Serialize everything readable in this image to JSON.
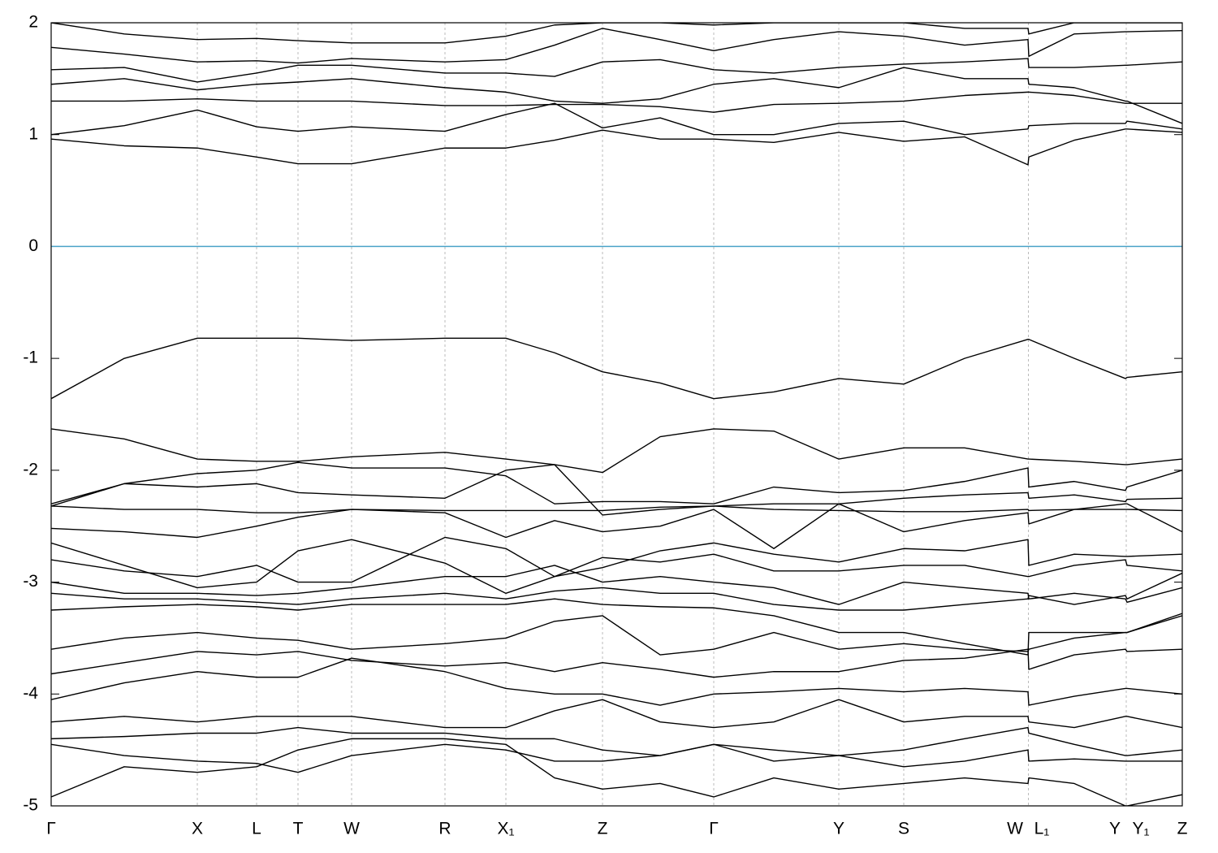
{
  "chart_data": {
    "type": "line",
    "x": [
      0,
      0.9,
      1.8,
      2.53,
      3.04,
      3.7,
      4.85,
      5.6,
      6.2,
      6.79,
      7.5,
      8.16,
      8.9,
      9.7,
      10.5,
      11.25,
      12.03,
      12.04,
      12.6,
      13.23,
      13.25,
      13.93
    ],
    "xlim": [
      0,
      13.93
    ],
    "xticks": [
      {
        "value": 0,
        "label": "Γ"
      },
      {
        "value": 1.8,
        "label": "X"
      },
      {
        "value": 2.53,
        "label": "L"
      },
      {
        "value": 3.04,
        "label": "T"
      },
      {
        "value": 3.7,
        "label": "W"
      },
      {
        "value": 4.85,
        "label": "R"
      },
      {
        "value": 5.6,
        "label": "X₁"
      },
      {
        "value": 6.79,
        "label": "Z"
      },
      {
        "value": 8.16,
        "label": "Γ"
      },
      {
        "value": 9.7,
        "label": "Y"
      },
      {
        "value": 10.5,
        "label": "S"
      },
      {
        "value": 11.87,
        "label": "W"
      },
      {
        "value": 12.2,
        "label": "L₁"
      },
      {
        "value": 13.1,
        "label": "Y"
      },
      {
        "value": 13.42,
        "label": "Y₁"
      },
      {
        "value": 13.93,
        "label": "Z"
      }
    ],
    "kpoints": [
      0,
      1.8,
      2.53,
      3.04,
      3.7,
      4.85,
      5.6,
      6.79,
      8.16,
      9.7,
      10.5,
      12.035,
      13.24,
      13.93
    ],
    "ylim": [
      -5,
      2
    ],
    "yticks": [
      -5,
      -4,
      -3,
      -2,
      -1,
      0,
      1,
      2
    ],
    "color": "#000000",
    "hline": {
      "y": 0,
      "color": "#4aa3c8"
    },
    "grid": true,
    "series": [
      {
        "values": [
          0.96,
          0.9,
          0.88,
          0.8,
          0.74,
          0.74,
          0.88,
          0.88,
          0.95,
          1.04,
          0.96,
          0.96,
          0.93,
          1.02,
          0.94,
          0.98,
          0.73,
          0.8,
          0.95,
          1.05,
          1.05,
          1.02
        ]
      },
      {
        "values": [
          1.0,
          1.08,
          1.22,
          1.07,
          1.03,
          1.07,
          1.03,
          1.18,
          1.28,
          1.06,
          1.15,
          1.0,
          1.0,
          1.1,
          1.12,
          1.0,
          1.05,
          1.08,
          1.1,
          1.1,
          1.12,
          1.05
        ]
      },
      {
        "values": [
          1.3,
          1.3,
          1.32,
          1.3,
          1.3,
          1.3,
          1.26,
          1.26,
          1.27,
          1.27,
          1.25,
          1.2,
          1.27,
          1.28,
          1.3,
          1.35,
          1.38,
          1.38,
          1.35,
          1.28,
          1.28,
          1.28
        ]
      },
      {
        "values": [
          1.45,
          1.5,
          1.4,
          1.45,
          1.47,
          1.5,
          1.42,
          1.38,
          1.3,
          1.28,
          1.32,
          1.45,
          1.5,
          1.42,
          1.6,
          1.5,
          1.5,
          1.45,
          1.42,
          1.3,
          1.3,
          1.1
        ]
      },
      {
        "values": [
          1.58,
          1.6,
          1.47,
          1.55,
          1.62,
          1.62,
          1.55,
          1.55,
          1.52,
          1.65,
          1.67,
          1.58,
          1.55,
          1.6,
          1.63,
          1.65,
          1.68,
          1.6,
          1.6,
          1.62,
          1.62,
          1.65
        ]
      },
      {
        "values": [
          1.78,
          1.72,
          1.65,
          1.66,
          1.64,
          1.68,
          1.65,
          1.67,
          1.8,
          1.95,
          1.85,
          1.75,
          1.85,
          1.92,
          1.88,
          1.8,
          1.85,
          1.7,
          1.9,
          1.92,
          1.92,
          1.93
        ]
      },
      {
        "values": [
          2.0,
          1.9,
          1.85,
          1.86,
          1.84,
          1.82,
          1.82,
          1.88,
          1.98,
          2.0,
          2.0,
          1.98,
          2.0,
          2.0,
          2.0,
          1.95,
          1.95,
          1.9,
          2.0,
          2.0,
          2.0,
          2.0
        ]
      },
      {
        "values": [
          -1.36,
          -1.0,
          -0.82,
          -0.82,
          -0.82,
          -0.84,
          -0.82,
          -0.82,
          -0.95,
          -1.12,
          -1.22,
          -1.36,
          -1.3,
          -1.18,
          -1.23,
          -1.0,
          -0.83,
          -0.83,
          -1.0,
          -1.18,
          -1.17,
          -1.12
        ]
      },
      {
        "values": [
          -1.63,
          -1.72,
          -1.9,
          -1.92,
          -1.92,
          -1.88,
          -1.84,
          -1.9,
          -1.95,
          -2.02,
          -1.7,
          -1.63,
          -1.65,
          -1.9,
          -1.8,
          -1.8,
          -1.9,
          -1.9,
          -1.92,
          -1.95,
          -1.95,
          -1.9
        ]
      },
      {
        "values": [
          -2.3,
          -2.12,
          -2.03,
          -2.0,
          -1.93,
          -1.98,
          -1.98,
          -2.05,
          -2.3,
          -2.28,
          -2.28,
          -2.3,
          -2.15,
          -2.2,
          -2.18,
          -2.1,
          -1.98,
          -2.15,
          -2.1,
          -2.18,
          -2.15,
          -2.0
        ]
      },
      {
        "values": [
          -2.32,
          -2.12,
          -2.15,
          -2.12,
          -2.2,
          -2.22,
          -2.25,
          -2.0,
          -1.95,
          -2.4,
          -2.35,
          -2.32,
          -2.3,
          -2.3,
          -2.25,
          -2.22,
          -2.2,
          -2.25,
          -2.22,
          -2.28,
          -2.26,
          -2.25
        ]
      },
      {
        "values": [
          -2.32,
          -2.35,
          -2.35,
          -2.38,
          -2.38,
          -2.35,
          -2.36,
          -2.36,
          -2.36,
          -2.36,
          -2.33,
          -2.32,
          -2.35,
          -2.36,
          -2.37,
          -2.37,
          -2.35,
          -2.36,
          -2.35,
          -2.35,
          -2.35,
          -2.36
        ]
      },
      {
        "values": [
          -2.52,
          -2.55,
          -2.6,
          -2.5,
          -2.42,
          -2.35,
          -2.38,
          -2.6,
          -2.45,
          -2.55,
          -2.5,
          -2.35,
          -2.7,
          -2.3,
          -2.55,
          -2.45,
          -2.38,
          -2.48,
          -2.35,
          -2.3,
          -2.3,
          -2.55
        ]
      },
      {
        "values": [
          -2.65,
          -2.85,
          -3.05,
          -3.0,
          -2.72,
          -2.62,
          -2.83,
          -3.1,
          -2.95,
          -2.87,
          -2.72,
          -2.65,
          -2.75,
          -2.82,
          -2.7,
          -2.72,
          -2.62,
          -2.85,
          -2.75,
          -2.77,
          -2.77,
          -2.75
        ]
      },
      {
        "values": [
          -2.8,
          -2.9,
          -2.95,
          -2.85,
          -3.0,
          -3.0,
          -2.6,
          -2.7,
          -2.95,
          -2.78,
          -2.82,
          -2.75,
          -2.9,
          -2.9,
          -2.85,
          -2.85,
          -2.95,
          -2.95,
          -2.85,
          -2.8,
          -2.85,
          -2.9
        ]
      },
      {
        "values": [
          -3.0,
          -3.1,
          -3.1,
          -3.12,
          -3.1,
          -3.05,
          -2.95,
          -2.95,
          -2.85,
          -3.0,
          -2.95,
          -3.0,
          -3.05,
          -3.2,
          -3.0,
          -3.05,
          -3.1,
          -3.15,
          -3.1,
          -3.15,
          -3.18,
          -3.05
        ]
      },
      {
        "values": [
          -3.1,
          -3.15,
          -3.15,
          -3.18,
          -3.2,
          -3.15,
          -3.1,
          -3.15,
          -3.08,
          -3.05,
          -3.1,
          -3.1,
          -3.2,
          -3.25,
          -3.25,
          -3.2,
          -3.15,
          -3.12,
          -3.2,
          -3.12,
          -3.15,
          -2.92
        ]
      },
      {
        "values": [
          -3.25,
          -3.22,
          -3.2,
          -3.22,
          -3.25,
          -3.2,
          -3.2,
          -3.2,
          -3.15,
          -3.2,
          -3.22,
          -3.23,
          -3.3,
          -3.45,
          -3.45,
          -3.55,
          -3.65,
          -3.45,
          -3.45,
          -3.45,
          -3.45,
          -3.28
        ]
      },
      {
        "values": [
          -3.6,
          -3.5,
          -3.45,
          -3.5,
          -3.52,
          -3.6,
          -3.55,
          -3.5,
          -3.35,
          -3.3,
          -3.65,
          -3.6,
          -3.45,
          -3.6,
          -3.55,
          -3.6,
          -3.62,
          -3.6,
          -3.5,
          -3.45,
          -3.45,
          -3.3
        ]
      },
      {
        "values": [
          -3.82,
          -3.72,
          -3.62,
          -3.65,
          -3.62,
          -3.7,
          -3.75,
          -3.72,
          -3.8,
          -3.72,
          -3.78,
          -3.85,
          -3.8,
          -3.8,
          -3.7,
          -3.68,
          -3.6,
          -3.78,
          -3.65,
          -3.6,
          -3.62,
          -3.6
        ]
      },
      {
        "values": [
          -4.05,
          -3.9,
          -3.8,
          -3.85,
          -3.85,
          -3.68,
          -3.8,
          -3.95,
          -4.0,
          -4.0,
          -4.1,
          -4.0,
          -3.98,
          -3.95,
          -3.98,
          -3.95,
          -3.98,
          -4.1,
          -4.02,
          -3.95,
          -3.95,
          -4.0
        ]
      },
      {
        "values": [
          -4.25,
          -4.2,
          -4.25,
          -4.2,
          -4.2,
          -4.2,
          -4.3,
          -4.3,
          -4.15,
          -4.05,
          -4.25,
          -4.3,
          -4.25,
          -4.05,
          -4.25,
          -4.2,
          -4.2,
          -4.25,
          -4.3,
          -4.2,
          -4.2,
          -4.3
        ]
      },
      {
        "values": [
          -4.4,
          -4.38,
          -4.35,
          -4.35,
          -4.3,
          -4.35,
          -4.35,
          -4.4,
          -4.4,
          -4.5,
          -4.55,
          -4.45,
          -4.5,
          -4.55,
          -4.5,
          -4.4,
          -4.3,
          -4.35,
          -4.45,
          -4.55,
          -4.55,
          -4.5
        ]
      },
      {
        "values": [
          -4.45,
          -4.55,
          -4.6,
          -4.62,
          -4.7,
          -4.55,
          -4.45,
          -4.5,
          -4.6,
          -4.6,
          -4.55,
          -4.45,
          -4.6,
          -4.55,
          -4.65,
          -4.6,
          -4.5,
          -4.6,
          -4.58,
          -4.6,
          -4.6,
          -4.6
        ]
      },
      {
        "values": [
          -4.92,
          -4.65,
          -4.7,
          -4.65,
          -4.5,
          -4.4,
          -4.4,
          -4.45,
          -4.75,
          -4.85,
          -4.8,
          -4.92,
          -4.75,
          -4.85,
          -4.8,
          -4.75,
          -4.8,
          -4.75,
          -4.8,
          -5.0,
          -5.0,
          -4.9
        ]
      }
    ]
  }
}
